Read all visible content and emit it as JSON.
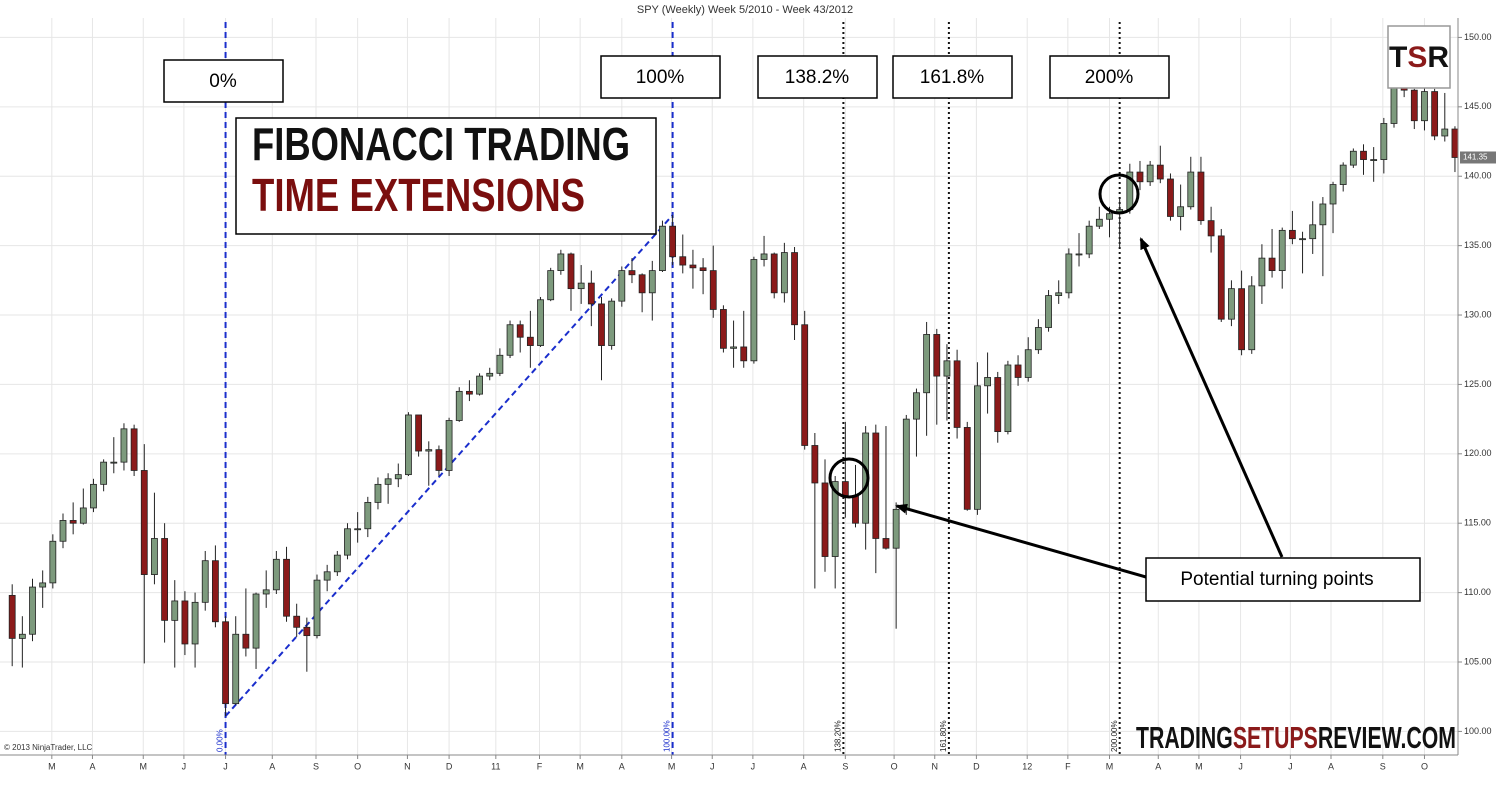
{
  "chart_data": {
    "type": "candlestick",
    "title": "SPY (Weekly)  Week 5/2010 - Week 43/2012",
    "overlay_title": [
      "FIBONACCI TRADING",
      "TIME EXTENSIONS"
    ],
    "annotation": "Potential turning points",
    "copyright": "© 2013 NinjaTrader, LLC",
    "logo": [
      "T",
      "S",
      "R"
    ],
    "watermark": [
      "TRADING",
      "SETUPS",
      "REVIEW.COM"
    ],
    "up_color": "#7d9a7d",
    "down_color": "#8b1a1a",
    "grid": true,
    "ylim": [
      98.3,
      151.4
    ],
    "yticks": [
      {
        "value": 100,
        "label": "100.00"
      },
      {
        "value": 105,
        "label": "105.00"
      },
      {
        "value": 110,
        "label": "110.00"
      },
      {
        "value": 115,
        "label": "115.00"
      },
      {
        "value": 120,
        "label": "120.00"
      },
      {
        "value": 125,
        "label": "125.00"
      },
      {
        "value": 130,
        "label": "130.00"
      },
      {
        "value": 135,
        "label": "135.00"
      },
      {
        "value": 140,
        "label": "140.00"
      },
      {
        "value": 145,
        "label": "145.00"
      },
      {
        "value": 150,
        "label": "150.00"
      }
    ],
    "xlim": [
      -1.2,
      142.3
    ],
    "xticks": [
      {
        "value": 3.9,
        "label": "M"
      },
      {
        "value": 7.9,
        "label": "A"
      },
      {
        "value": 12.9,
        "label": "M"
      },
      {
        "value": 16.9,
        "label": "J"
      },
      {
        "value": 21.0,
        "label": "J"
      },
      {
        "value": 25.6,
        "label": "A"
      },
      {
        "value": 29.9,
        "label": "S"
      },
      {
        "value": 34.0,
        "label": "O"
      },
      {
        "value": 38.9,
        "label": "N"
      },
      {
        "value": 43.0,
        "label": "D"
      },
      {
        "value": 47.6,
        "label": "11"
      },
      {
        "value": 51.9,
        "label": "F"
      },
      {
        "value": 55.9,
        "label": "M"
      },
      {
        "value": 60.0,
        "label": "A"
      },
      {
        "value": 64.9,
        "label": "M"
      },
      {
        "value": 68.9,
        "label": "J"
      },
      {
        "value": 72.9,
        "label": "J"
      },
      {
        "value": 77.9,
        "label": "A"
      },
      {
        "value": 82.0,
        "label": "S"
      },
      {
        "value": 86.8,
        "label": "O"
      },
      {
        "value": 90.8,
        "label": "N"
      },
      {
        "value": 94.9,
        "label": "D"
      },
      {
        "value": 99.9,
        "label": "12"
      },
      {
        "value": 103.9,
        "label": "F"
      },
      {
        "value": 108.0,
        "label": "M"
      },
      {
        "value": 112.8,
        "label": "A"
      },
      {
        "value": 116.8,
        "label": "M"
      },
      {
        "value": 120.9,
        "label": "J"
      },
      {
        "value": 125.8,
        "label": "J"
      },
      {
        "value": 129.8,
        "label": "A"
      },
      {
        "value": 134.9,
        "label": "S"
      },
      {
        "value": 139.0,
        "label": "O"
      }
    ],
    "fib_anchor": {
      "x": [
        21,
        65
      ],
      "y": [
        101.1,
        137.2
      ]
    },
    "fib_levels": [
      {
        "value": 0,
        "label": "0%",
        "axis_label": "0.00%"
      },
      {
        "value": 100,
        "label": "100%",
        "axis_label": "100.00%"
      },
      {
        "value": 138.2,
        "label": "138.2%",
        "axis_label": "138.20%"
      },
      {
        "value": 161.8,
        "label": "161.8%",
        "axis_label": "161.80%"
      },
      {
        "value": 200,
        "label": "200%",
        "axis_label": "200.00%"
      }
    ],
    "open": [
      109.8,
      106.7,
      107.0,
      110.4,
      110.7,
      113.7,
      115.2,
      115.0,
      116.1,
      117.8,
      119.4,
      119.4,
      121.8,
      118.8,
      111.3,
      113.9,
      108.0,
      109.4,
      106.3,
      109.3,
      112.3,
      107.9,
      102.0,
      107.0,
      106.0,
      109.9,
      110.2,
      112.4,
      108.3,
      107.5,
      106.9,
      110.9,
      111.5,
      112.7,
      114.6,
      114.6,
      116.5,
      117.8,
      118.2,
      118.5,
      122.8,
      120.2,
      120.3,
      118.8,
      122.4,
      124.5,
      124.3,
      125.6,
      125.8,
      127.1,
      129.3,
      128.4,
      127.8,
      131.1,
      133.2,
      134.4,
      131.9,
      132.3,
      130.8,
      127.8,
      131.0,
      133.2,
      132.9,
      131.6,
      133.2,
      136.4,
      134.2,
      133.6,
      133.4,
      133.2,
      130.4,
      127.6,
      127.7,
      126.7,
      134.0,
      134.4,
      131.6,
      134.5,
      129.3,
      120.6,
      117.9,
      112.6,
      118.0,
      117.0,
      115.0,
      121.5,
      113.9,
      113.2,
      116.0,
      122.5,
      124.4,
      128.6,
      125.6,
      126.7,
      121.9,
      116.0,
      124.9,
      125.5,
      121.6,
      126.4,
      125.5,
      127.5,
      129.1,
      131.4,
      131.6,
      134.4,
      134.4,
      136.4,
      136.9,
      137.3,
      137.6,
      140.3,
      139.6,
      140.8,
      139.8,
      137.1,
      137.8,
      140.3,
      136.8,
      135.7,
      129.7,
      131.9,
      127.5,
      132.1,
      134.1,
      133.2,
      136.1,
      135.5,
      135.5,
      136.5,
      138.0,
      139.4,
      140.8,
      141.8,
      141.2,
      141.2,
      143.8,
      146.6,
      146.2,
      144.0,
      146.1,
      142.9,
      143.4
    ],
    "high": [
      110.6,
      108.3,
      111.0,
      111.6,
      114.2,
      115.7,
      116.5,
      117.5,
      118.2,
      119.6,
      121.2,
      122.2,
      122.1,
      120.7,
      117.2,
      115.0,
      110.9,
      110.1,
      110.0,
      113.0,
      113.4,
      108.3,
      108.3,
      110.3,
      110.0,
      111.6,
      113.0,
      113.3,
      109.2,
      108.2,
      111.3,
      112.0,
      113.0,
      115.0,
      115.8,
      116.9,
      118.3,
      118.6,
      119.3,
      123.0,
      122.8,
      120.9,
      120.6,
      122.6,
      124.8,
      125.3,
      125.8,
      126.2,
      127.6,
      129.6,
      129.6,
      130.3,
      131.3,
      133.4,
      134.7,
      134.5,
      133.6,
      133.2,
      131.3,
      131.2,
      133.5,
      134.1,
      133.0,
      133.9,
      136.8,
      137.2,
      135.8,
      134.7,
      134.1,
      135.0,
      130.7,
      129.6,
      130.3,
      134.2,
      135.7,
      134.5,
      135.2,
      134.9,
      130.3,
      121.5,
      119.6,
      118.4,
      122.3,
      119.2,
      122.0,
      122.1,
      122.0,
      116.5,
      122.8,
      124.7,
      129.5,
      129.0,
      127.9,
      127.5,
      122.3,
      126.6,
      127.3,
      125.9,
      126.7,
      127.1,
      128.4,
      129.7,
      131.8,
      132.5,
      134.8,
      135.9,
      136.8,
      137.8,
      137.8,
      138.4,
      140.9,
      141.1,
      141.1,
      142.2,
      140.2,
      139.4,
      141.4,
      141.4,
      137.8,
      136.2,
      132.5,
      133.2,
      132.8,
      135.1,
      136.2,
      136.3,
      137.5,
      136.0,
      138.2,
      138.5,
      139.6,
      141.0,
      142.0,
      142.3,
      142.1,
      144.2,
      147.3,
      147.3,
      146.3,
      146.7,
      146.3,
      146.0,
      143.6
    ],
    "low": [
      104.7,
      104.6,
      106.5,
      108.9,
      110.3,
      113.2,
      114.2,
      114.9,
      115.8,
      117.3,
      118.6,
      118.8,
      118.4,
      104.9,
      110.6,
      106.4,
      104.6,
      105.5,
      104.6,
      108.7,
      107.5,
      101.1,
      101.9,
      105.4,
      104.5,
      108.9,
      109.9,
      107.9,
      106.8,
      104.3,
      106.7,
      110.1,
      111.2,
      112.4,
      113.6,
      114.0,
      116.0,
      116.4,
      117.6,
      118.4,
      119.8,
      117.7,
      118.4,
      118.4,
      122.3,
      123.8,
      124.2,
      125.3,
      125.6,
      126.9,
      127.3,
      126.2,
      127.7,
      131.0,
      132.9,
      130.3,
      130.8,
      129.2,
      125.3,
      127.5,
      130.6,
      132.3,
      130.2,
      129.6,
      133.1,
      133.6,
      133.0,
      131.9,
      131.5,
      129.8,
      127.3,
      126.2,
      126.2,
      126.5,
      133.5,
      131.2,
      130.9,
      128.2,
      120.3,
      110.3,
      111.5,
      110.3,
      115.4,
      114.7,
      113.1,
      111.4,
      113.1,
      107.4,
      115.6,
      119.8,
      121.3,
      122.1,
      122.4,
      121.1,
      115.9,
      115.6,
      122.9,
      120.8,
      121.4,
      124.9,
      125.2,
      127.2,
      128.8,
      130.8,
      131.2,
      133.5,
      134.1,
      136.2,
      135.6,
      134.8,
      137.3,
      139.0,
      139.3,
      139.5,
      136.8,
      136.1,
      137.6,
      136.5,
      134.5,
      129.5,
      129.2,
      127.1,
      127.2,
      130.8,
      132.7,
      131.9,
      135.1,
      133.0,
      134.4,
      132.8,
      135.9,
      138.9,
      140.6,
      140.1,
      139.6,
      140.2,
      143.5,
      145.7,
      143.4,
      143.3,
      142.6,
      142.5,
      140.3
    ],
    "close": [
      106.7,
      107.0,
      110.4,
      110.7,
      113.7,
      115.2,
      115.0,
      116.1,
      117.8,
      119.4,
      119.4,
      121.8,
      118.8,
      111.3,
      113.9,
      108.0,
      109.4,
      106.3,
      109.3,
      112.3,
      107.9,
      102.0,
      107.0,
      106.0,
      109.9,
      110.2,
      112.4,
      108.3,
      107.5,
      106.9,
      110.9,
      111.5,
      112.7,
      114.6,
      114.6,
      116.5,
      117.8,
      118.2,
      118.5,
      122.8,
      120.2,
      120.3,
      118.8,
      122.4,
      124.5,
      124.3,
      125.6,
      125.8,
      127.1,
      129.3,
      128.4,
      127.8,
      131.1,
      133.2,
      134.4,
      131.9,
      132.3,
      130.8,
      127.8,
      131.0,
      133.2,
      132.9,
      131.6,
      133.2,
      136.4,
      134.2,
      133.6,
      133.4,
      133.2,
      130.4,
      127.6,
      127.7,
      126.7,
      134.0,
      134.4,
      131.6,
      134.5,
      129.3,
      120.6,
      117.9,
      112.6,
      118.0,
      117.0,
      115.0,
      121.5,
      113.9,
      113.2,
      116.0,
      122.5,
      124.4,
      128.6,
      125.6,
      126.7,
      121.9,
      116.0,
      124.9,
      125.5,
      121.6,
      126.4,
      125.5,
      127.5,
      129.1,
      131.4,
      131.6,
      134.4,
      134.4,
      136.4,
      136.9,
      137.3,
      137.6,
      140.3,
      139.6,
      140.8,
      139.8,
      137.1,
      137.8,
      140.3,
      136.8,
      135.7,
      129.7,
      131.9,
      127.5,
      132.1,
      134.1,
      133.2,
      136.1,
      135.5,
      135.5,
      136.5,
      138.0,
      139.4,
      140.8,
      141.8,
      141.2,
      141.2,
      143.8,
      146.6,
      146.2,
      144.0,
      146.1,
      142.9,
      143.4,
      141.35
    ]
  }
}
